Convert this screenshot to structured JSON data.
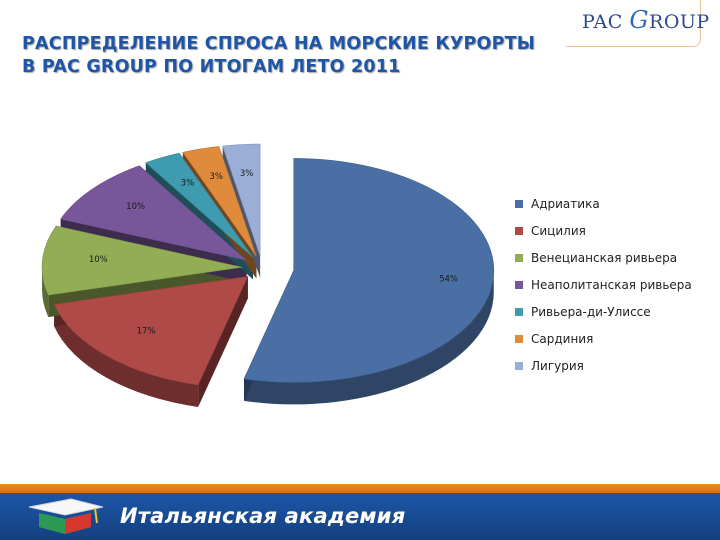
{
  "header": {
    "title_line1": "РАСПРЕДЕЛЕНИЕ СПРОСА НА МОРСКИЕ КУРОРТЫ",
    "title_line2": "В PAC GROUP ПО ИТОГАМ ЛЕТО 2011",
    "logo_left": "PAC",
    "logo_mid": "G",
    "logo_right": "ROUP"
  },
  "chart_data": {
    "type": "pie",
    "title": "",
    "categories": [
      "Адриатика",
      "Сицилия",
      "Венецианская ривьера",
      "Неаполитанская ривьера",
      "Ривьера-ди-Улиссе",
      "Сардиния",
      "Лигурия"
    ],
    "values": [
      54,
      17,
      10,
      10,
      3,
      3,
      3
    ],
    "labels": [
      "54%",
      "17%",
      "10%",
      "10%",
      "3%",
      "3%",
      "3%"
    ],
    "colors": [
      "#4a6fa5",
      "#b04a48",
      "#93ad55",
      "#77579a",
      "#3f9bb0",
      "#e08a3c",
      "#9aaed6"
    ],
    "legend_position": "right"
  },
  "footer": {
    "brand": "Итальянская академия"
  }
}
